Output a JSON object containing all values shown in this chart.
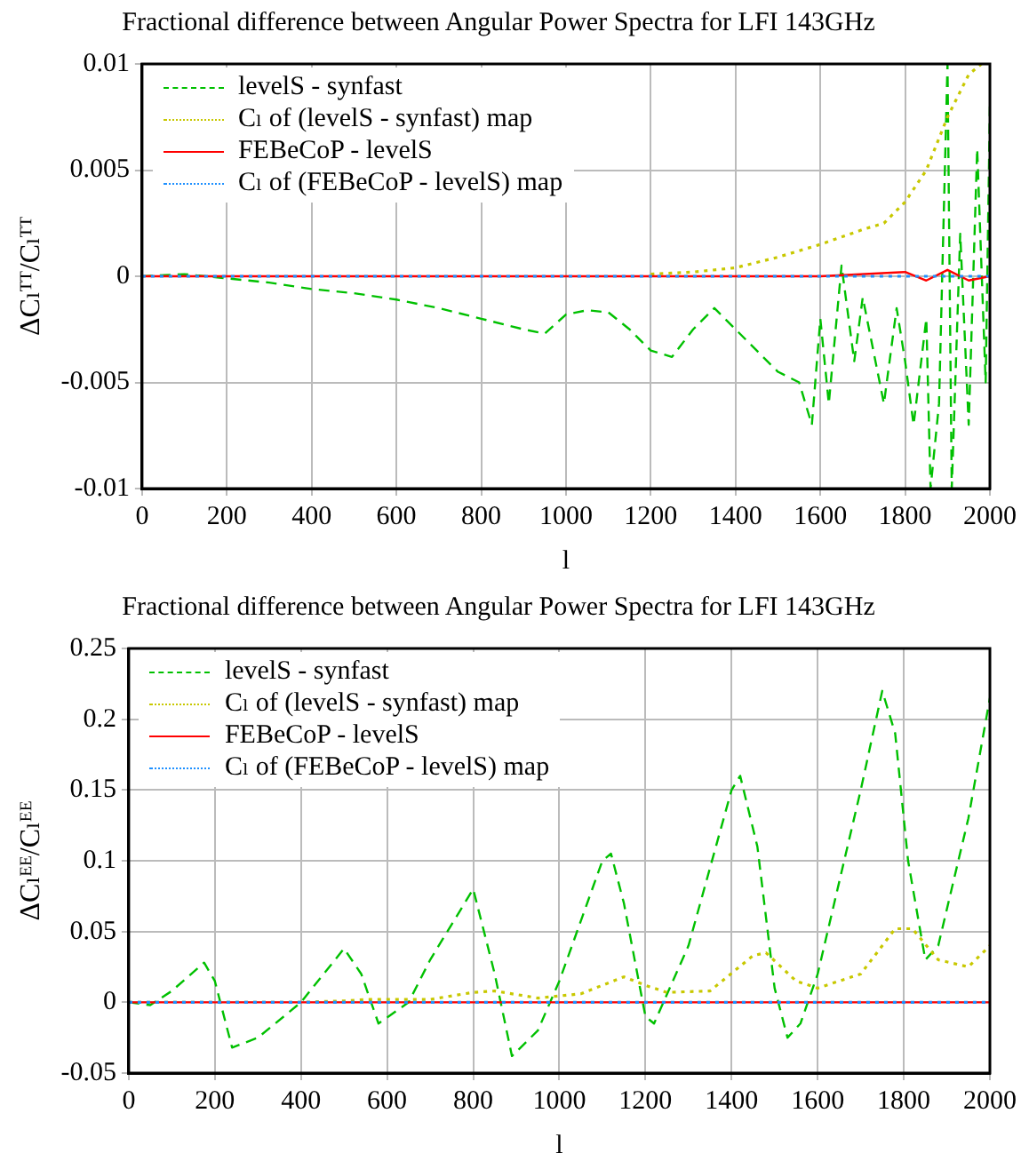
{
  "chart_data": [
    {
      "type": "line",
      "title": "Fractional difference between Angular Power Spectra for LFI 143GHz",
      "xlabel": "l",
      "ylabel": "ΔCₗᵀᵀ/Cₗᵀᵀ",
      "xlim": [
        0,
        2000
      ],
      "xticks": [
        0,
        200,
        400,
        600,
        800,
        1000,
        1200,
        1400,
        1600,
        1800,
        2000
      ],
      "ylim": [
        -0.01,
        0.01
      ],
      "yticks": [
        -0.01,
        -0.005,
        0,
        0.005,
        0.01
      ],
      "grid": true,
      "legend": "top left",
      "marker": "none",
      "series": [
        {
          "name": "levelS - synfast",
          "color": "#00c000",
          "line_style": "dashed",
          "x": [
            0,
            100,
            200,
            300,
            400,
            500,
            600,
            700,
            800,
            900,
            950,
            1000,
            1050,
            1100,
            1150,
            1200,
            1250,
            1300,
            1350,
            1400,
            1450,
            1500,
            1550,
            1580,
            1600,
            1620,
            1650,
            1680,
            1700,
            1750,
            1780,
            1800,
            1820,
            1850,
            1860,
            1880,
            1900,
            1910,
            1930,
            1950,
            1970,
            1990,
            2000
          ],
          "values": [
            0,
            0.0001,
            -0.0001,
            -0.0003,
            -0.0006,
            -0.0008,
            -0.0011,
            -0.0015,
            -0.002,
            -0.0025,
            -0.0027,
            -0.0018,
            -0.0016,
            -0.0017,
            -0.0025,
            -0.0035,
            -0.0038,
            -0.0025,
            -0.0015,
            -0.0025,
            -0.0035,
            -0.0045,
            -0.005,
            -0.007,
            -0.002,
            -0.006,
            0.0005,
            -0.004,
            -0.001,
            -0.006,
            -0.0015,
            -0.004,
            -0.007,
            -0.002,
            -0.01,
            -0.006,
            0.01,
            -0.01,
            0.002,
            -0.007,
            0.006,
            -0.005,
            0.008
          ]
        },
        {
          "name": "Cₗ of (levelS - synfast) map",
          "color": "#c8c800",
          "line_style": "dotted",
          "x": [
            1200,
            1300,
            1400,
            1500,
            1600,
            1700,
            1750,
            1800,
            1850,
            1900,
            1950,
            1980
          ],
          "values": [
            0.0001,
            0.0002,
            0.0004,
            0.0009,
            0.0015,
            0.0022,
            0.0025,
            0.0035,
            0.005,
            0.0075,
            0.0095,
            0.01
          ]
        },
        {
          "name": "FEBeCoP - levelS",
          "color": "#ff0000",
          "line_style": "solid",
          "x": [
            0,
            1600,
            1800,
            1850,
            1900,
            1950,
            2000
          ],
          "values": [
            0,
            0,
            0.0002,
            -0.0002,
            0.0003,
            -0.0002,
            0
          ]
        },
        {
          "name": "Cₗ of (FEBeCoP - levelS) map",
          "color": "#1e90ff",
          "line_style": "dotted",
          "x": [
            0,
            2000
          ],
          "values": [
            0,
            0
          ]
        }
      ]
    },
    {
      "type": "line",
      "title": "Fractional difference between Angular Power Spectra for LFI 143GHz",
      "xlabel": "l",
      "ylabel": "ΔCₗᴱᴱ/Cₗᴱᴱ",
      "xlim": [
        0,
        2000
      ],
      "xticks": [
        0,
        200,
        400,
        600,
        800,
        1000,
        1200,
        1400,
        1600,
        1800,
        2000
      ],
      "ylim": [
        -0.05,
        0.25
      ],
      "yticks": [
        -0.05,
        0,
        0.05,
        0.1,
        0.15,
        0.2,
        0.25
      ],
      "grid": true,
      "legend": "top left",
      "marker": "none",
      "series": [
        {
          "name": "levelS - synfast",
          "color": "#00c000",
          "line_style": "dashed",
          "x": [
            0,
            50,
            100,
            175,
            200,
            240,
            300,
            400,
            500,
            540,
            580,
            650,
            700,
            800,
            850,
            890,
            950,
            1000,
            1100,
            1120,
            1150,
            1200,
            1220,
            1300,
            1400,
            1420,
            1460,
            1500,
            1530,
            1560,
            1600,
            1700,
            1750,
            1780,
            1810,
            1850,
            1880,
            1950,
            2000
          ],
          "values": [
            0,
            -0.002,
            0.008,
            0.028,
            0.015,
            -0.032,
            -0.025,
            0,
            0.038,
            0.02,
            -0.015,
            0,
            0.03,
            0.08,
            0.02,
            -0.038,
            -0.02,
            0.015,
            0.1,
            0.105,
            0.07,
            -0.01,
            -0.015,
            0.04,
            0.15,
            0.16,
            0.11,
            0.01,
            -0.025,
            -0.015,
            0.02,
            0.15,
            0.22,
            0.19,
            0.1,
            0.03,
            0.04,
            0.13,
            0.215
          ]
        },
        {
          "name": "Cₗ of (levelS - synfast) map",
          "color": "#c8c800",
          "line_style": "dotted",
          "x": [
            0,
            400,
            500,
            550,
            700,
            800,
            850,
            950,
            1050,
            1150,
            1200,
            1250,
            1350,
            1450,
            1480,
            1550,
            1600,
            1700,
            1780,
            1820,
            1880,
            1950,
            2000
          ],
          "values": [
            0,
            0,
            0.001,
            0.002,
            0.002,
            0.007,
            0.008,
            0.003,
            0.006,
            0.018,
            0.012,
            0.007,
            0.008,
            0.033,
            0.035,
            0.015,
            0.01,
            0.02,
            0.052,
            0.052,
            0.03,
            0.025,
            0.04
          ]
        },
        {
          "name": "FEBeCoP - levelS",
          "color": "#ff0000",
          "line_style": "solid",
          "x": [
            0,
            2000
          ],
          "values": [
            0,
            0
          ]
        },
        {
          "name": "Cₗ of (FEBeCoP - levelS) map",
          "color": "#1e90ff",
          "line_style": "dotted",
          "x": [
            0,
            2000
          ],
          "values": [
            0,
            0
          ]
        }
      ]
    }
  ]
}
